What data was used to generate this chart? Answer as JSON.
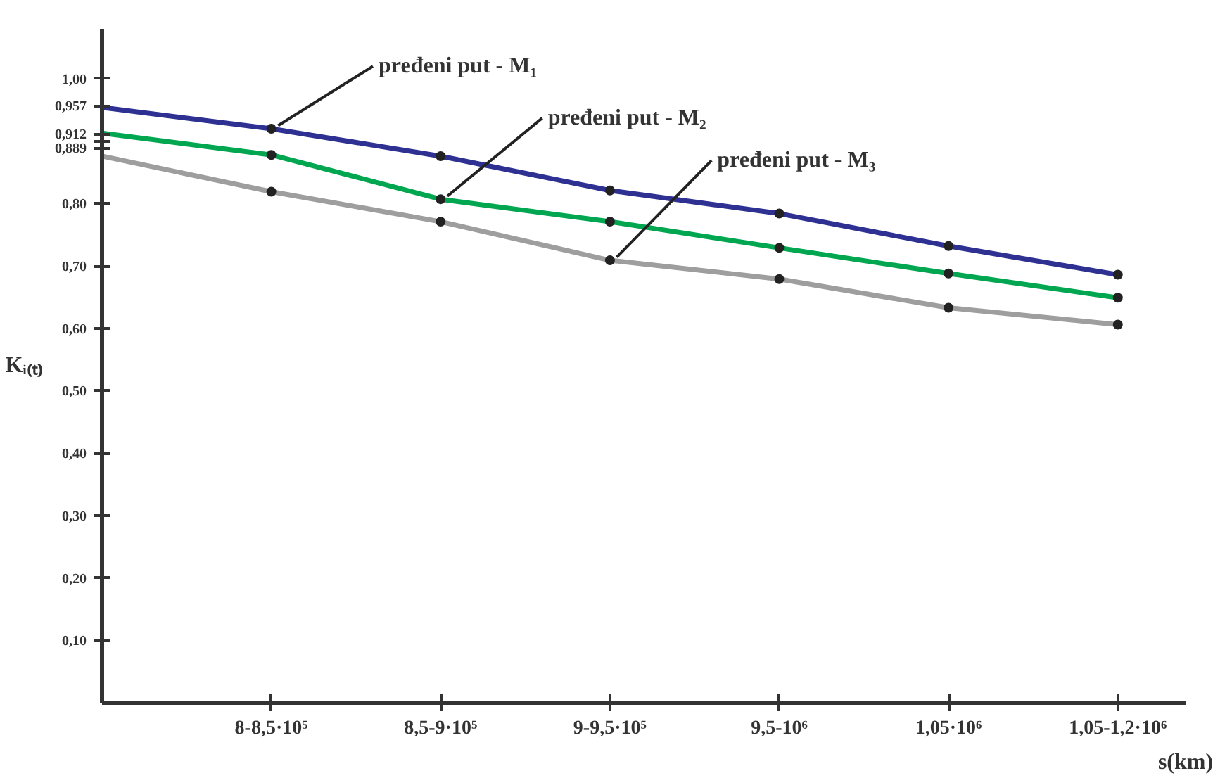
{
  "chart_data": {
    "type": "line",
    "ylabel": "Kᵢ₍ₜ₎",
    "xlabel": "s(km)",
    "categories": [
      null,
      "8-8,5·10⁵",
      "8,5-9·10⁵",
      "9-9,5·10⁵",
      "9,5-10⁶",
      "1,05·10⁶",
      "1,05-1,2·10⁶"
    ],
    "series": [
      {
        "color": "#2e3192",
        "values": [
          0.954,
          0.92,
          0.876,
          0.821,
          0.784,
          0.732,
          0.686
        ]
      },
      {
        "color": "#00a650",
        "values": [
          0.913,
          0.878,
          0.807,
          0.771,
          0.729,
          0.688,
          0.649
        ]
      },
      {
        "color": "#9e9e9e",
        "values": [
          0.876,
          0.819,
          0.771,
          0.709,
          0.679,
          0.633,
          0.606
        ]
      }
    ],
    "ylim": [
      0,
      1.08
    ],
    "yticks": [
      {
        "value": 0.1,
        "label": "0,10"
      },
      {
        "value": 0.2,
        "label": "0,20"
      },
      {
        "value": 0.3,
        "label": "0,30"
      },
      {
        "value": 0.4,
        "label": "0,40"
      },
      {
        "value": 0.5,
        "label": "0,50"
      },
      {
        "value": 0.6,
        "label": "0,60"
      },
      {
        "value": 0.7,
        "label": "0,70"
      },
      {
        "value": 0.8,
        "label": "0,80"
      },
      {
        "value": 0.889,
        "label": "0,889"
      },
      {
        "value": 0.9,
        "label": null
      },
      {
        "value": 0.912,
        "label": "0,912"
      },
      {
        "value": 0.957,
        "label": "0,957"
      },
      {
        "value": 1.0,
        "label": "1,00"
      }
    ],
    "annotations": [
      {
        "text": "pređeni put - M₁",
        "x": "8-8,5·10⁵",
        "y": 0.92
      },
      {
        "text": "pređeni put - M₂",
        "x": "8,5-9·10⁵",
        "y": 0.807
      },
      {
        "text": "pređeni put - M₃",
        "x": "9-9,5·10⁵",
        "y": 0.709
      }
    ],
    "marker": "circle",
    "grid": false
  }
}
